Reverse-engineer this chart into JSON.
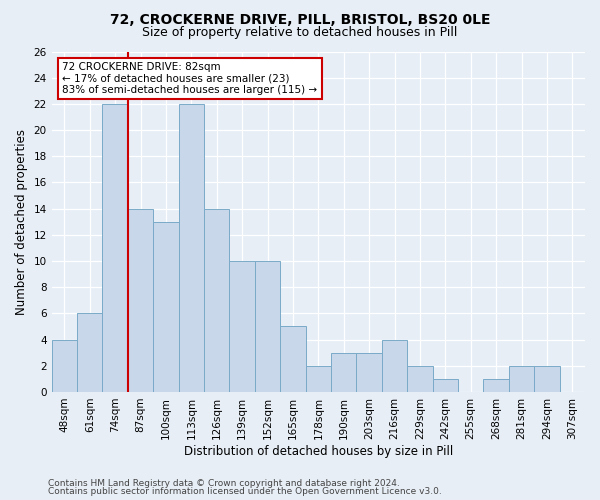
{
  "title1": "72, CROCKERNE DRIVE, PILL, BRISTOL, BS20 0LE",
  "title2": "Size of property relative to detached houses in Pill",
  "xlabel": "Distribution of detached houses by size in Pill",
  "ylabel": "Number of detached properties",
  "categories": [
    "48sqm",
    "61sqm",
    "74sqm",
    "87sqm",
    "100sqm",
    "113sqm",
    "126sqm",
    "139sqm",
    "152sqm",
    "165sqm",
    "178sqm",
    "190sqm",
    "203sqm",
    "216sqm",
    "229sqm",
    "242sqm",
    "255sqm",
    "268sqm",
    "281sqm",
    "294sqm",
    "307sqm"
  ],
  "values": [
    4,
    6,
    22,
    14,
    13,
    22,
    14,
    10,
    10,
    5,
    2,
    3,
    3,
    4,
    2,
    1,
    0,
    1,
    2,
    2,
    0
  ],
  "bar_color": "#c8d8ea",
  "bar_edgecolor": "#7aaac8",
  "annotation_text": "72 CROCKERNE DRIVE: 82sqm\n← 17% of detached houses are smaller (23)\n83% of semi-detached houses are larger (115) →",
  "annotation_box_edgecolor": "#cc0000",
  "annotation_box_facecolor": "#ffffff",
  "vline_color": "#cc0000",
  "vline_x": 2.5,
  "ylim": [
    0,
    26
  ],
  "yticks": [
    0,
    2,
    4,
    6,
    8,
    10,
    12,
    14,
    16,
    18,
    20,
    22,
    24,
    26
  ],
  "bg_color": "#e8eef6",
  "plot_bg_color": "#e8eef6",
  "footer1": "Contains HM Land Registry data © Crown copyright and database right 2024.",
  "footer2": "Contains public sector information licensed under the Open Government Licence v3.0.",
  "title1_fontsize": 10,
  "title2_fontsize": 9,
  "xlabel_fontsize": 8.5,
  "ylabel_fontsize": 8.5,
  "tick_fontsize": 7.5,
  "footer_fontsize": 6.5,
  "ann_fontsize": 7.5
}
